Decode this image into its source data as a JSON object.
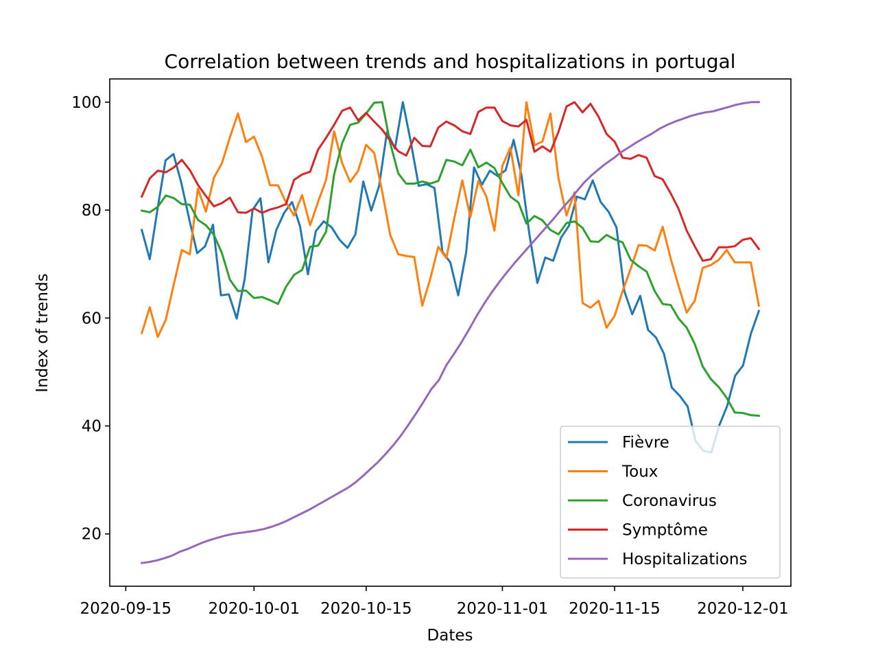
{
  "chart_data": {
    "type": "line",
    "title": "Correlation between trends and hospitalizations in portugal",
    "xlabel": "Dates",
    "ylabel": "Index of trends",
    "xlim": [
      "2020-09-13",
      "2020-12-07"
    ],
    "ylim": [
      10.3,
      104.3
    ],
    "grid": false,
    "legend_position": "lower-right",
    "x_tick_labels": [
      "2020-09-15",
      "2020-10-01",
      "2020-10-15",
      "2020-11-01",
      "2020-11-15",
      "2020-12-01"
    ],
    "y_tick_labels": [
      "20",
      "40",
      "60",
      "80",
      "100"
    ],
    "x_start": "2020-09-17",
    "series": [
      {
        "name": "Fièvre",
        "color": "#1f77b4",
        "values": [
          76.3,
          70.9,
          80.3,
          89.2,
          90.4,
          85.0,
          78.3,
          72.0,
          73.3,
          77.3,
          64.2,
          64.4,
          59.9,
          67.2,
          80.0,
          82.2,
          70.3,
          76.3,
          79.5,
          81.5,
          77.0,
          68.1,
          76.1,
          77.9,
          76.8,
          74.5,
          73.0,
          75.5,
          85.3,
          79.9,
          84.5,
          94.5,
          91.4,
          100.0,
          92.7,
          84.5,
          84.8,
          84.1,
          72.3,
          70.3,
          64.2,
          72.2,
          87.9,
          84.7,
          87.3,
          86.3,
          87.4,
          93.0,
          86.4,
          75.5,
          66.5,
          71.2,
          70.6,
          74.9,
          77.1,
          82.5,
          82.0,
          85.5,
          81.5,
          79.7,
          76.8,
          65.0,
          60.7,
          64.1,
          57.8,
          56.4,
          53.4,
          47.1,
          45.6,
          43.6,
          37.2,
          35.4,
          35.1,
          40.1,
          43.7,
          49.3,
          51.2,
          57.1,
          61.3
        ]
      },
      {
        "name": "Toux",
        "color": "#ff7f0e",
        "values": [
          57.2,
          62.0,
          56.5,
          59.7,
          66.3,
          72.6,
          71.8,
          84.0,
          79.7,
          86.0,
          88.7,
          93.5,
          97.9,
          92.6,
          93.6,
          89.9,
          84.6,
          84.6,
          81.4,
          79.0,
          82.8,
          77.2,
          81.5,
          85.6,
          94.6,
          88.7,
          85.2,
          87.3,
          92.1,
          90.6,
          83.4,
          75.4,
          71.8,
          71.5,
          71.3,
          62.3,
          67.3,
          73.2,
          71.1,
          78.5,
          85.5,
          78.7,
          85.4,
          82.5,
          76.2,
          88.2,
          91.6,
          82.7,
          100.0,
          92.0,
          92.7,
          97.9,
          85.9,
          79.0,
          83.3,
          62.8,
          61.9,
          63.2,
          58.2,
          60.4,
          65.0,
          69.1,
          73.5,
          73.4,
          72.5,
          76.9,
          71.0,
          65.9,
          61.0,
          63.2,
          69.3,
          69.8,
          70.8,
          72.6,
          70.3,
          70.3,
          70.3,
          62.3
        ]
      },
      {
        "name": "Coronavirus",
        "color": "#2ca02c",
        "values": [
          79.9,
          79.6,
          80.6,
          82.7,
          82.2,
          81.1,
          81.0,
          78.2,
          77.2,
          75.4,
          72.0,
          67.1,
          65.0,
          65.1,
          63.7,
          63.9,
          63.3,
          62.6,
          65.8,
          68.0,
          68.9,
          73.2,
          73.4,
          76.0,
          86.6,
          92.4,
          95.8,
          96.2,
          97.9,
          99.9,
          100.0,
          92.4,
          86.8,
          84.9,
          84.9,
          85.3,
          84.9,
          85.4,
          89.3,
          89.0,
          88.3,
          91.2,
          87.9,
          88.8,
          87.8,
          85.0,
          82.5,
          81.4,
          77.5,
          78.9,
          78.1,
          76.3,
          75.5,
          77.6,
          77.9,
          76.7,
          74.2,
          74.1,
          75.4,
          74.6,
          74.0,
          70.8,
          69.6,
          68.6,
          65.0,
          62.6,
          62.4,
          59.9,
          58.2,
          55.2,
          51.0,
          48.7,
          47.2,
          45.2,
          42.5,
          42.4,
          42.0,
          41.9
        ]
      },
      {
        "name": "Symptôme",
        "color": "#d62728",
        "values": [
          82.5,
          85.9,
          87.3,
          87.0,
          87.9,
          89.3,
          87.4,
          84.7,
          82.6,
          80.7,
          81.3,
          82.3,
          79.6,
          79.5,
          80.3,
          79.5,
          80.1,
          80.5,
          81.1,
          85.6,
          86.6,
          87.1,
          91.2,
          93.4,
          95.8,
          98.4,
          99.0,
          96.6,
          98.0,
          96.4,
          94.9,
          92.8,
          90.9,
          90.1,
          93.4,
          91.9,
          91.8,
          95.3,
          96.4,
          95.7,
          94.6,
          94.1,
          98.2,
          99.0,
          99.0,
          96.5,
          95.7,
          95.5,
          96.7,
          90.8,
          91.8,
          90.8,
          94.5,
          99.2,
          100.0,
          98.1,
          99.7,
          97.3,
          94.1,
          92.7,
          89.7,
          89.5,
          90.2,
          89.7,
          86.3,
          85.7,
          83.1,
          80.2,
          76.2,
          73.3,
          70.6,
          70.9,
          73.1,
          73.1,
          73.3,
          74.5,
          74.8,
          72.8
        ]
      },
      {
        "name": "Hospitalizations",
        "color": "#9467bd",
        "values": [
          14.6,
          14.8,
          15.1,
          15.5,
          16.0,
          16.7,
          17.2,
          17.8,
          18.4,
          18.9,
          19.3,
          19.7,
          20.0,
          20.2,
          20.4,
          20.6,
          20.9,
          21.3,
          21.8,
          22.4,
          23.1,
          23.8,
          24.5,
          25.3,
          26.1,
          26.9,
          27.7,
          28.5,
          29.5,
          30.7,
          32.0,
          33.3,
          34.8,
          36.4,
          38.2,
          40.2,
          42.3,
          44.5,
          46.8,
          48.5,
          51.3,
          53.4,
          55.6,
          58.0,
          60.5,
          62.8,
          64.9,
          66.8,
          68.6,
          70.3,
          71.9,
          73.5,
          75.1,
          76.7,
          78.3,
          80.0,
          81.6,
          83.3,
          85.0,
          86.4,
          87.6,
          88.7,
          89.7,
          90.8,
          91.7,
          92.6,
          93.4,
          94.2,
          95.1,
          95.8,
          96.4,
          96.9,
          97.4,
          97.8,
          98.1,
          98.3,
          98.7,
          99.1,
          99.5,
          99.8,
          100.0,
          100.0
        ]
      }
    ]
  }
}
